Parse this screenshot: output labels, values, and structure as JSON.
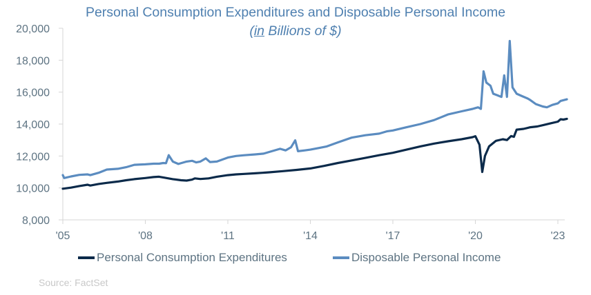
{
  "chart_data": {
    "type": "line",
    "title": "Personal Consumption Expenditures and Disposable Personal Income",
    "subtitle_prefix": "(",
    "subtitle_underlined": "in",
    "subtitle_rest": " Billions of $)",
    "xlabel": "",
    "ylabel": "",
    "ylim": [
      8000,
      20000
    ],
    "yticks": [
      8000,
      10000,
      12000,
      14000,
      16000,
      18000,
      20000
    ],
    "ytick_labels": [
      "8,000",
      "10,000",
      "12,000",
      "14,000",
      "16,000",
      "18,000",
      "20,000"
    ],
    "xlim": [
      2005.0,
      2023.33
    ],
    "xticks": [
      2005,
      2008,
      2011,
      2014,
      2017,
      2020,
      2023
    ],
    "xtick_labels": [
      "'05",
      "'08",
      "'11",
      "'14",
      "'17",
      "'20",
      "'23"
    ],
    "grid": false,
    "legend_position": "bottom",
    "series": [
      {
        "name": "Personal Consumption Expenditures",
        "color": "#0b2a4a",
        "points": [
          [
            2005.0,
            9950
          ],
          [
            2005.3,
            10020
          ],
          [
            2005.6,
            10120
          ],
          [
            2005.9,
            10200
          ],
          [
            2006.0,
            10150
          ],
          [
            2006.3,
            10250
          ],
          [
            2006.6,
            10320
          ],
          [
            2007.0,
            10400
          ],
          [
            2007.3,
            10480
          ],
          [
            2007.6,
            10550
          ],
          [
            2008.0,
            10620
          ],
          [
            2008.3,
            10680
          ],
          [
            2008.5,
            10700
          ],
          [
            2008.7,
            10640
          ],
          [
            2009.0,
            10550
          ],
          [
            2009.3,
            10480
          ],
          [
            2009.5,
            10460
          ],
          [
            2009.7,
            10520
          ],
          [
            2009.8,
            10600
          ],
          [
            2010.0,
            10560
          ],
          [
            2010.3,
            10600
          ],
          [
            2010.6,
            10700
          ],
          [
            2011.0,
            10800
          ],
          [
            2011.3,
            10850
          ],
          [
            2011.6,
            10880
          ],
          [
            2012.0,
            10920
          ],
          [
            2012.5,
            10980
          ],
          [
            2013.0,
            11050
          ],
          [
            2013.5,
            11130
          ],
          [
            2014.0,
            11220
          ],
          [
            2014.5,
            11380
          ],
          [
            2015.0,
            11560
          ],
          [
            2015.5,
            11720
          ],
          [
            2016.0,
            11880
          ],
          [
            2016.5,
            12050
          ],
          [
            2017.0,
            12200
          ],
          [
            2017.5,
            12400
          ],
          [
            2018.0,
            12600
          ],
          [
            2018.5,
            12780
          ],
          [
            2019.0,
            12920
          ],
          [
            2019.5,
            13050
          ],
          [
            2019.9,
            13180
          ],
          [
            2020.0,
            13240
          ],
          [
            2020.15,
            12700
          ],
          [
            2020.25,
            11000
          ],
          [
            2020.35,
            12000
          ],
          [
            2020.5,
            12600
          ],
          [
            2020.75,
            12950
          ],
          [
            2021.0,
            13050
          ],
          [
            2021.15,
            13000
          ],
          [
            2021.3,
            13250
          ],
          [
            2021.4,
            13200
          ],
          [
            2021.5,
            13650
          ],
          [
            2021.75,
            13700
          ],
          [
            2022.0,
            13800
          ],
          [
            2022.25,
            13850
          ],
          [
            2022.5,
            13950
          ],
          [
            2022.75,
            14050
          ],
          [
            2023.0,
            14150
          ],
          [
            2023.1,
            14300
          ],
          [
            2023.2,
            14280
          ],
          [
            2023.33,
            14330
          ]
        ]
      },
      {
        "name": "Disposable Personal Income",
        "color": "#5b8cc0",
        "points": [
          [
            2005.0,
            10800
          ],
          [
            2005.05,
            10620
          ],
          [
            2005.3,
            10720
          ],
          [
            2005.6,
            10820
          ],
          [
            2005.9,
            10850
          ],
          [
            2006.0,
            10800
          ],
          [
            2006.3,
            10950
          ],
          [
            2006.6,
            11150
          ],
          [
            2007.0,
            11200
          ],
          [
            2007.3,
            11300
          ],
          [
            2007.6,
            11450
          ],
          [
            2008.0,
            11480
          ],
          [
            2008.3,
            11520
          ],
          [
            2008.5,
            11520
          ],
          [
            2008.65,
            11560
          ],
          [
            2008.75,
            11550
          ],
          [
            2008.85,
            12050
          ],
          [
            2009.0,
            11650
          ],
          [
            2009.2,
            11500
          ],
          [
            2009.5,
            11650
          ],
          [
            2009.7,
            11700
          ],
          [
            2009.85,
            11600
          ],
          [
            2010.0,
            11650
          ],
          [
            2010.2,
            11850
          ],
          [
            2010.35,
            11620
          ],
          [
            2010.6,
            11650
          ],
          [
            2011.0,
            11900
          ],
          [
            2011.3,
            12000
          ],
          [
            2011.6,
            12050
          ],
          [
            2012.0,
            12100
          ],
          [
            2012.3,
            12150
          ],
          [
            2012.6,
            12300
          ],
          [
            2012.9,
            12450
          ],
          [
            2013.1,
            12350
          ],
          [
            2013.3,
            12550
          ],
          [
            2013.45,
            12980
          ],
          [
            2013.55,
            12300
          ],
          [
            2013.8,
            12350
          ],
          [
            2014.0,
            12400
          ],
          [
            2014.3,
            12500
          ],
          [
            2014.6,
            12600
          ],
          [
            2015.0,
            12850
          ],
          [
            2015.5,
            13150
          ],
          [
            2016.0,
            13300
          ],
          [
            2016.5,
            13400
          ],
          [
            2016.8,
            13550
          ],
          [
            2017.0,
            13600
          ],
          [
            2017.5,
            13800
          ],
          [
            2018.0,
            14000
          ],
          [
            2018.5,
            14250
          ],
          [
            2019.0,
            14600
          ],
          [
            2019.5,
            14800
          ],
          [
            2019.9,
            14950
          ],
          [
            2020.0,
            15000
          ],
          [
            2020.1,
            15050
          ],
          [
            2020.2,
            14950
          ],
          [
            2020.3,
            17300
          ],
          [
            2020.4,
            16600
          ],
          [
            2020.55,
            16400
          ],
          [
            2020.65,
            15900
          ],
          [
            2020.8,
            15800
          ],
          [
            2020.95,
            15700
          ],
          [
            2021.05,
            17050
          ],
          [
            2021.15,
            15700
          ],
          [
            2021.25,
            19200
          ],
          [
            2021.35,
            16300
          ],
          [
            2021.5,
            15900
          ],
          [
            2021.7,
            15750
          ],
          [
            2021.9,
            15600
          ],
          [
            2022.0,
            15500
          ],
          [
            2022.2,
            15250
          ],
          [
            2022.45,
            15100
          ],
          [
            2022.6,
            15050
          ],
          [
            2022.8,
            15200
          ],
          [
            2023.0,
            15300
          ],
          [
            2023.1,
            15450
          ],
          [
            2023.33,
            15550
          ]
        ]
      }
    ]
  },
  "legend": {
    "items": [
      {
        "label": "Personal Consumption Expenditures",
        "color": "#0b2a4a"
      },
      {
        "label": "Disposable Personal Income",
        "color": "#5b8cc0"
      }
    ]
  },
  "source": "Source: FactSet"
}
